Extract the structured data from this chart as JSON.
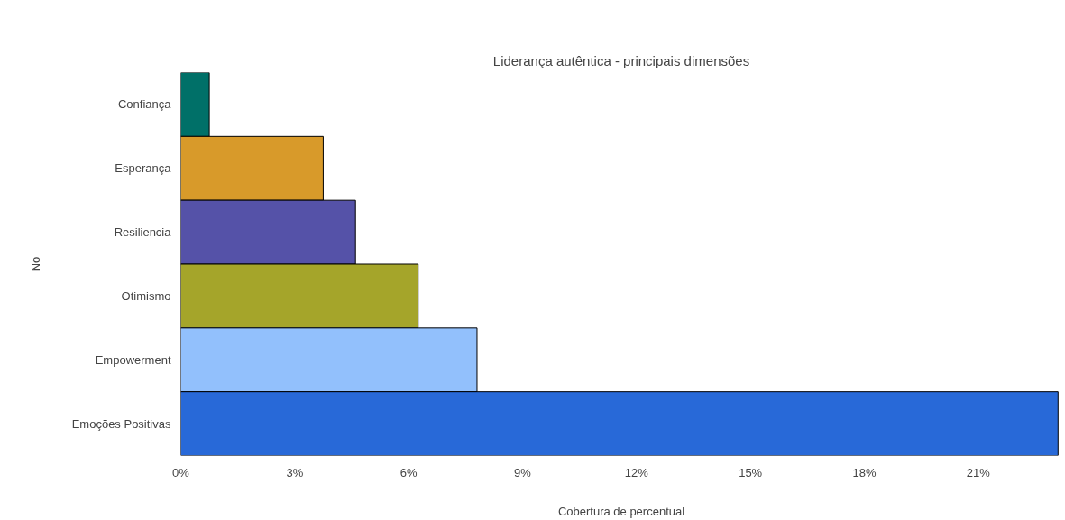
{
  "chart_data": {
    "type": "bar",
    "orientation": "horizontal",
    "title": "Liderança autêntica - principais dimensões",
    "xlabel": "Cobertura de percentual",
    "ylabel": "Nó",
    "categories": [
      "Confiança",
      "Esperança",
      "Resiliencia",
      "Otimismo",
      "Empowerment",
      "Emoções Positivas"
    ],
    "values": [
      0.75,
      3.75,
      4.6,
      6.25,
      7.8,
      23.1
    ],
    "colors": [
      "#007068",
      "#d89a2a",
      "#5552a8",
      "#a5a52a",
      "#92c0fc",
      "#2869d8"
    ],
    "xlim": [
      0,
      23.2
    ],
    "xticks": [
      {
        "value": 0,
        "label": "0%"
      },
      {
        "value": 3,
        "label": "3%"
      },
      {
        "value": 6,
        "label": "6%"
      },
      {
        "value": 9,
        "label": "9%"
      },
      {
        "value": 12,
        "label": "12%"
      },
      {
        "value": 15,
        "label": "15%"
      },
      {
        "value": 18,
        "label": "18%"
      },
      {
        "value": 21,
        "label": "21%"
      }
    ],
    "grid": false
  }
}
